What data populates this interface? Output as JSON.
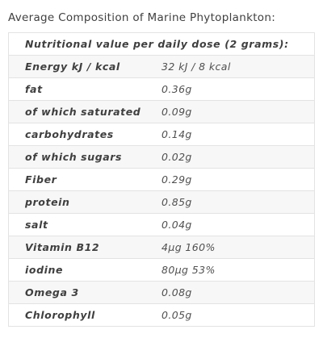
{
  "title": "Average Composition of Marine Phytoplankton:",
  "table": {
    "header": "Nutritional value per daily dose (2 grams):",
    "rows": [
      {
        "label": "Energy kJ / kcal",
        "value": "32 kJ / 8 kcal"
      },
      {
        "label": "fat",
        "value": "0.36g"
      },
      {
        "label": "of which saturated",
        "value": "0.09g"
      },
      {
        "label": "carbohydrates",
        "value": "0.14g"
      },
      {
        "label": "of which sugars",
        "value": "0.02g"
      },
      {
        "label": "Fiber",
        "value": "0.29g"
      },
      {
        "label": "protein",
        "value": "0.85g"
      },
      {
        "label": "salt",
        "value": "0.04g"
      },
      {
        "label": "Vitamin B12",
        "value": "4µg 160%"
      },
      {
        "label": "iodine",
        "value": "80µg 53%"
      },
      {
        "label": "Omega 3",
        "value": "0.08g"
      },
      {
        "label": "Chlorophyll",
        "value": "0.05g"
      }
    ]
  }
}
